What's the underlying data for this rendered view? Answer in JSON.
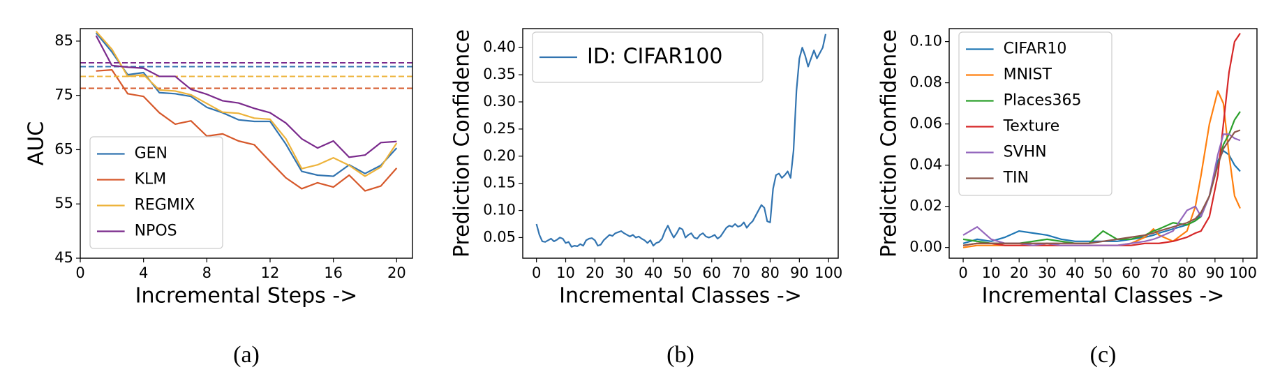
{
  "chart_data": [
    {
      "type": "line",
      "caption": "(a)",
      "xlabel": "Incremental Steps ->",
      "ylabel": "AUC",
      "legend": "lower left",
      "x": [
        1,
        2,
        3,
        4,
        5,
        6,
        7,
        8,
        9,
        10,
        11,
        12,
        13,
        14,
        15,
        16,
        17,
        18,
        19,
        20
      ],
      "xlim": [
        0,
        21
      ],
      "ylim": [
        45,
        87.3
      ],
      "xticks": [
        0,
        4,
        8,
        12,
        16,
        20
      ],
      "yticks": [
        45,
        55,
        65,
        75,
        85
      ],
      "series": [
        {
          "name": "GEN",
          "color": "#3274b0",
          "baseline": 80.3,
          "values": [
            86.5,
            83,
            78.8,
            79.2,
            75.5,
            75.3,
            74.8,
            72.8,
            71.8,
            70.5,
            70.2,
            70.2,
            66,
            61,
            60.3,
            60.1,
            62.2,
            60.6,
            62.1,
            65.3
          ]
        },
        {
          "name": "KLM",
          "color": "#d6582a",
          "baseline": 76.3,
          "values": [
            79.5,
            79.7,
            75.3,
            74.8,
            71.8,
            69.7,
            70.3,
            67.5,
            67.9,
            66.6,
            65.9,
            62.8,
            59.8,
            57.8,
            58.9,
            58.1,
            60.3,
            57.4,
            58.3,
            61.6
          ]
        },
        {
          "name": "REGMIX",
          "color": "#edb33b",
          "baseline": 78.5,
          "values": [
            86.8,
            83.5,
            78.5,
            78.8,
            76,
            75.8,
            75.1,
            73.5,
            71.9,
            71.7,
            70.8,
            70.6,
            67,
            61.5,
            62.2,
            63.5,
            62.1,
            60.1,
            61.8,
            66.2
          ]
        },
        {
          "name": "NPOS",
          "color": "#7a2a8c",
          "baseline": 81,
          "values": [
            86,
            80.5,
            80.2,
            80,
            78.5,
            78.5,
            76.1,
            75.2,
            74,
            73.6,
            72.6,
            71.8,
            69.9,
            67,
            65.3,
            66.6,
            63.6,
            64,
            66.3,
            66.5
          ]
        }
      ]
    },
    {
      "type": "line",
      "caption": "(b)",
      "xlabel": "Incremental Classes ->",
      "ylabel": "Prediction Confidence",
      "legend": "upper left",
      "x": [
        0,
        1,
        2,
        3,
        4,
        5,
        6,
        7,
        8,
        9,
        10,
        11,
        12,
        13,
        14,
        15,
        16,
        17,
        18,
        19,
        20,
        21,
        22,
        23,
        24,
        25,
        26,
        27,
        28,
        29,
        30,
        31,
        32,
        33,
        34,
        35,
        36,
        37,
        38,
        39,
        40,
        41,
        42,
        43,
        44,
        45,
        46,
        47,
        48,
        49,
        50,
        51,
        52,
        53,
        54,
        55,
        56,
        57,
        58,
        59,
        60,
        61,
        62,
        63,
        64,
        65,
        66,
        67,
        68,
        69,
        70,
        71,
        72,
        73,
        74,
        75,
        76,
        77,
        78,
        79,
        80,
        81,
        82,
        83,
        84,
        85,
        86,
        87,
        88,
        89,
        90,
        91,
        92,
        93,
        94,
        95,
        96,
        97,
        98,
        99
      ],
      "xlim": [
        -4.7,
        103.3
      ],
      "ylim": [
        0.012,
        0.435
      ],
      "xticks": [
        0,
        10,
        20,
        30,
        40,
        50,
        60,
        70,
        80,
        90,
        100
      ],
      "yticks": [
        0.05,
        {
          "value": 0.1,
          "label": "0.10"
        },
        0.15,
        {
          "value": 0.2,
          "label": "0.20"
        },
        0.25,
        {
          "value": 0.3,
          "label": "0.30"
        },
        0.35,
        {
          "value": 0.4,
          "label": "0.40"
        }
      ],
      "series": [
        {
          "name": "ID: CIFAR100",
          "color": "#3274b0",
          "values": [
            0.075,
            0.055,
            0.043,
            0.042,
            0.045,
            0.048,
            0.043,
            0.046,
            0.05,
            0.048,
            0.04,
            0.042,
            0.033,
            0.035,
            0.034,
            0.038,
            0.035,
            0.045,
            0.048,
            0.049,
            0.045,
            0.035,
            0.037,
            0.045,
            0.05,
            0.055,
            0.053,
            0.058,
            0.06,
            0.062,
            0.058,
            0.055,
            0.052,
            0.055,
            0.05,
            0.052,
            0.048,
            0.045,
            0.04,
            0.045,
            0.035,
            0.04,
            0.042,
            0.048,
            0.062,
            0.072,
            0.06,
            0.05,
            0.058,
            0.068,
            0.065,
            0.05,
            0.055,
            0.058,
            0.05,
            0.048,
            0.055,
            0.058,
            0.052,
            0.05,
            0.052,
            0.055,
            0.048,
            0.052,
            0.06,
            0.068,
            0.072,
            0.07,
            0.075,
            0.07,
            0.072,
            0.078,
            0.068,
            0.075,
            0.08,
            0.09,
            0.1,
            0.11,
            0.105,
            0.08,
            0.078,
            0.14,
            0.165,
            0.168,
            0.16,
            0.165,
            0.172,
            0.16,
            0.21,
            0.32,
            0.38,
            0.4,
            0.385,
            0.365,
            0.38,
            0.395,
            0.38,
            0.39,
            0.4,
            0.425
          ]
        }
      ]
    },
    {
      "type": "line",
      "caption": "(c)",
      "xlabel": "Incremental Classes ->",
      "ylabel": "Prediction Confidence",
      "legend": "upper left",
      "x": [
        0,
        5,
        10,
        15,
        20,
        25,
        30,
        35,
        40,
        45,
        50,
        55,
        60,
        65,
        68,
        70,
        75,
        80,
        83,
        85,
        88,
        91,
        93,
        95,
        97,
        99
      ],
      "xlim": [
        -5,
        105
      ],
      "ylim": [
        -0.0052,
        0.1063
      ],
      "xticks": [
        0,
        10,
        20,
        30,
        40,
        50,
        60,
        70,
        80,
        90,
        100
      ],
      "yticks": [
        {
          "value": 0,
          "label": "0.00"
        },
        0.02,
        0.04,
        0.06,
        0.08,
        {
          "value": 0.1,
          "label": "0.10"
        }
      ],
      "series": [
        {
          "name": "CIFAR10",
          "color": "#1f77b4",
          "values": [
            0.002,
            0.004,
            0.003,
            0.005,
            0.008,
            0.007,
            0.006,
            0.004,
            0.003,
            0.003,
            0.003,
            0.003,
            0.004,
            0.005,
            0.006,
            0.007,
            0.009,
            0.011,
            0.013,
            0.016,
            0.025,
            0.042,
            0.047,
            0.045,
            0.04,
            0.037
          ]
        },
        {
          "name": "MNIST",
          "color": "#ff7f0e",
          "values": [
            0,
            0.001,
            0.001,
            0.001,
            0.001,
            0.001,
            0.001,
            0.001,
            0.001,
            0.001,
            0.001,
            0.001,
            0.002,
            0.005,
            0.009,
            0.006,
            0.003,
            0.008,
            0.02,
            0.035,
            0.06,
            0.076,
            0.07,
            0.045,
            0.025,
            0.019
          ]
        },
        {
          "name": "Places365",
          "color": "#2ca02c",
          "values": [
            0.004,
            0.003,
            0.002,
            0.002,
            0.002,
            0.003,
            0.004,
            0.003,
            0.002,
            0.002,
            0.008,
            0.004,
            0.004,
            0.006,
            0.008,
            0.009,
            0.012,
            0.011,
            0.013,
            0.015,
            0.025,
            0.04,
            0.05,
            0.055,
            0.062,
            0.066
          ]
        },
        {
          "name": "Texture",
          "color": "#d62728",
          "values": [
            0.001,
            0.002,
            0.002,
            0.001,
            0.001,
            0.001,
            0.001,
            0.001,
            0.001,
            0.001,
            0.001,
            0.001,
            0.001,
            0.002,
            0.002,
            0.002,
            0.003,
            0.005,
            0.007,
            0.008,
            0.015,
            0.035,
            0.06,
            0.085,
            0.1,
            0.104
          ]
        },
        {
          "name": "SVHN",
          "color": "#9467bd",
          "values": [
            0.006,
            0.01,
            0.004,
            0.002,
            0.002,
            0.001,
            0.002,
            0.001,
            0.001,
            0.001,
            0.001,
            0.001,
            0.002,
            0.003,
            0.004,
            0.005,
            0.008,
            0.018,
            0.02,
            0.015,
            0.025,
            0.045,
            0.055,
            0.055,
            0.053,
            0.052
          ]
        },
        {
          "name": "TIN",
          "color": "#8c564b",
          "values": [
            0.001,
            0.002,
            0.002,
            0.002,
            0.002,
            0.002,
            0.002,
            0.002,
            0.002,
            0.002,
            0.003,
            0.004,
            0.005,
            0.006,
            0.007,
            0.008,
            0.01,
            0.012,
            0.014,
            0.017,
            0.025,
            0.04,
            0.048,
            0.052,
            0.056,
            0.057
          ]
        }
      ]
    }
  ]
}
